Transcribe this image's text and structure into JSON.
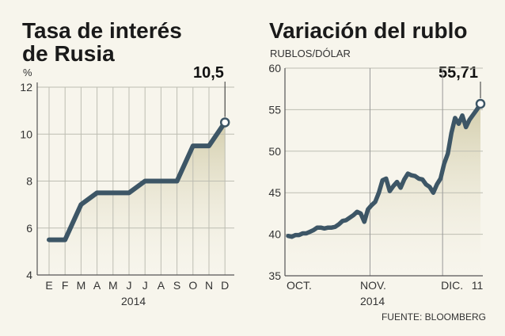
{
  "chart_data": [
    {
      "type": "line",
      "title_lines": [
        "Tasa de interés",
        "de Rusia"
      ],
      "unit_label": "%",
      "xlabel": "2014",
      "categories": [
        "E",
        "F",
        "M",
        "A",
        "M",
        "J",
        "J",
        "A",
        "S",
        "O",
        "N",
        "D"
      ],
      "x": [
        0,
        0.5,
        1,
        2,
        3,
        4,
        5,
        6,
        7,
        8,
        9,
        10,
        11
      ],
      "values": [
        5.5,
        5.5,
        5.5,
        7.0,
        7.5,
        7.5,
        7.5,
        8.0,
        8.0,
        8.0,
        9.5,
        9.5,
        10.5
      ],
      "ylim": [
        4,
        12
      ],
      "yticks": [
        4,
        6,
        8,
        10,
        12
      ],
      "callout": "10,5",
      "grid": true,
      "line_color": "#3d5666",
      "fill_color": "#d8d2b4"
    },
    {
      "type": "area",
      "title": "Variación del rublo",
      "unit_label": "RUBLOS/DÓLAR",
      "x_tick_labels": [
        "OCT.",
        "NOV.",
        "DIC."
      ],
      "x_sublabel": "2014",
      "x_end_label": "11",
      "points": [
        [
          "1 oct",
          39.8
        ],
        [
          "2 oct",
          39.7
        ],
        [
          "3 oct",
          39.9
        ],
        [
          "6 oct",
          39.9
        ],
        [
          "7 oct",
          40.1
        ],
        [
          "8 oct",
          40.1
        ],
        [
          "9 oct",
          40.3
        ],
        [
          "10 oct",
          40.5
        ],
        [
          "13 oct",
          40.8
        ],
        [
          "14 oct",
          40.8
        ],
        [
          "15 oct",
          40.7
        ],
        [
          "16 oct",
          40.8
        ],
        [
          "17 oct",
          40.8
        ],
        [
          "20 oct",
          40.9
        ],
        [
          "21 oct",
          41.2
        ],
        [
          "22 oct",
          41.6
        ],
        [
          "23 oct",
          41.7
        ],
        [
          "24 oct",
          42.0
        ],
        [
          "27 oct",
          42.3
        ],
        [
          "28 oct",
          42.7
        ],
        [
          "29 oct",
          42.5
        ],
        [
          "30 oct",
          41.5
        ],
        [
          "31 oct",
          43.0
        ],
        [
          "3 nov",
          43.5
        ],
        [
          "4 nov",
          43.9
        ],
        [
          "5 nov",
          45.0
        ],
        [
          "6 nov",
          46.5
        ],
        [
          "7 nov",
          46.7
        ],
        [
          "10 nov",
          45.2
        ],
        [
          "11 nov",
          45.8
        ],
        [
          "12 nov",
          46.3
        ],
        [
          "13 nov",
          45.6
        ],
        [
          "14 nov",
          46.6
        ],
        [
          "17 nov",
          47.3
        ],
        [
          "18 nov",
          47.1
        ],
        [
          "19 nov",
          47.0
        ],
        [
          "20 nov",
          46.7
        ],
        [
          "21 nov",
          46.6
        ],
        [
          "24 nov",
          46.0
        ],
        [
          "25 nov",
          45.7
        ],
        [
          "26 nov",
          45.0
        ],
        [
          "27 nov",
          46.0
        ],
        [
          "28 nov",
          46.7
        ],
        [
          "1 dic",
          48.5
        ],
        [
          "2 dic",
          49.7
        ],
        [
          "3 dic",
          52.2
        ],
        [
          "4 dic",
          54.0
        ],
        [
          "5 dic",
          53.3
        ],
        [
          "6 dic",
          54.3
        ],
        [
          "7 dic",
          52.9
        ],
        [
          "8 dic",
          53.8
        ],
        [
          "9 dic",
          54.4
        ],
        [
          "10 dic",
          55.0
        ],
        [
          "11 dic",
          55.71
        ]
      ],
      "ylim": [
        35,
        60
      ],
      "yticks": [
        35,
        40,
        45,
        50,
        55,
        60
      ],
      "callout": "55,71",
      "grid": true,
      "line_color": "#3d5666",
      "fill_color": "#d8d2b4"
    }
  ],
  "source": "FUENTE: BLOOMBERG"
}
